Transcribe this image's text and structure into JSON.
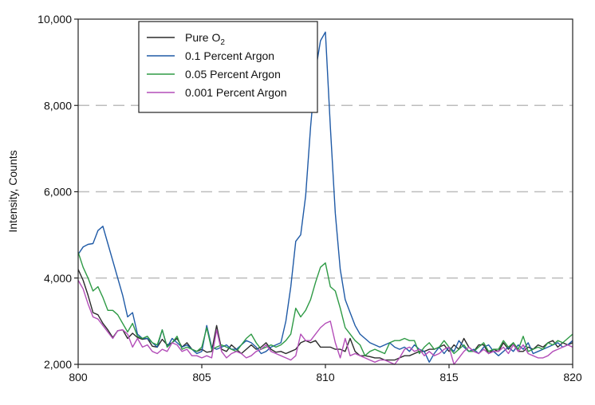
{
  "chart_data": {
    "type": "line",
    "title": "",
    "xlabel": "",
    "ylabel": "Intensity, Counts",
    "xlim": [
      800,
      820
    ],
    "ylim": [
      2000,
      10000
    ],
    "x_ticks": [
      800,
      805,
      810,
      815,
      820
    ],
    "x_tick_labels": [
      "800",
      "805",
      "810",
      "815",
      "820"
    ],
    "y_ticks": [
      2000,
      4000,
      6000,
      8000,
      10000
    ],
    "y_tick_labels": [
      "2,000",
      "4,000",
      "6,000",
      "8,000",
      "10,000"
    ],
    "grid": "horizontal dashed",
    "legend_position": "top-left",
    "x": [
      800.0,
      800.2,
      800.4,
      800.6,
      800.8,
      801.0,
      801.2,
      801.4,
      801.6,
      801.8,
      802.0,
      802.2,
      802.4,
      802.6,
      802.8,
      803.0,
      803.2,
      803.4,
      803.6,
      803.8,
      804.0,
      804.2,
      804.4,
      804.6,
      804.8,
      805.0,
      805.2,
      805.4,
      805.6,
      805.8,
      806.0,
      806.2,
      806.4,
      806.6,
      806.8,
      807.0,
      807.2,
      807.4,
      807.6,
      807.8,
      808.0,
      808.2,
      808.4,
      808.6,
      808.8,
      809.0,
      809.2,
      809.4,
      809.6,
      809.8,
      810.0,
      810.2,
      810.4,
      810.6,
      810.8,
      811.0,
      811.2,
      811.4,
      811.6,
      811.8,
      812.0,
      812.2,
      812.4,
      812.6,
      812.8,
      813.0,
      813.2,
      813.4,
      813.6,
      813.8,
      814.0,
      814.2,
      814.4,
      814.6,
      814.8,
      815.0,
      815.2,
      815.4,
      815.6,
      815.8,
      816.0,
      816.2,
      816.4,
      816.6,
      816.8,
      817.0,
      817.2,
      817.4,
      817.6,
      817.8,
      818.0,
      818.2,
      818.4,
      818.6,
      818.8,
      819.0,
      819.2,
      819.4,
      819.6,
      819.8,
      820.0
    ],
    "series": [
      {
        "name": "Pure O₂",
        "label_main": "Pure O",
        "label_sub": "2",
        "color": "#2b2b2b",
        "values": [
          4200,
          3950,
          3600,
          3200,
          3150,
          2950,
          2800,
          2620,
          2780,
          2800,
          2600,
          2720,
          2620,
          2580,
          2600,
          2420,
          2400,
          2580,
          2450,
          2500,
          2600,
          2400,
          2500,
          2350,
          2300,
          2350,
          2280,
          2300,
          2900,
          2350,
          2300,
          2450,
          2350,
          2250,
          2350,
          2450,
          2350,
          2400,
          2500,
          2350,
          2280,
          2300,
          2250,
          2300,
          2350,
          2500,
          2550,
          2500,
          2550,
          2400,
          2400,
          2400,
          2350,
          2350,
          2300,
          2600,
          2300,
          2200,
          2200,
          2180,
          2150,
          2150,
          2100,
          2100,
          2100,
          2150,
          2200,
          2200,
          2250,
          2300,
          2300,
          2350,
          2350,
          2400,
          2450,
          2300,
          2450,
          2350,
          2600,
          2400,
          2300,
          2450,
          2450,
          2250,
          2350,
          2300,
          2500,
          2350,
          2500,
          2300,
          2300,
          2400,
          2350,
          2450,
          2400,
          2500,
          2550,
          2400,
          2500,
          2450,
          2500
        ]
      },
      {
        "name": "0.1 Percent Argon",
        "label_main": "0.1 Percent Argon",
        "label_sub": "",
        "color": "#1f5aa6",
        "values": [
          4550,
          4720,
          4780,
          4800,
          5100,
          5200,
          4800,
          4400,
          4000,
          3600,
          3100,
          3200,
          2700,
          2600,
          2600,
          2500,
          2400,
          2800,
          2400,
          2600,
          2500,
          2400,
          2450,
          2350,
          2250,
          2300,
          2900,
          2400,
          2350,
          2400,
          2450,
          2350,
          2350,
          2450,
          2550,
          2500,
          2400,
          2250,
          2300,
          2400,
          2450,
          2500,
          3000,
          3800,
          4850,
          5000,
          5900,
          7500,
          8800,
          9500,
          9700,
          7500,
          5500,
          4200,
          3500,
          3200,
          2900,
          2700,
          2600,
          2500,
          2450,
          2400,
          2450,
          2500,
          2400,
          2350,
          2400,
          2300,
          2450,
          2350,
          2300,
          2050,
          2250,
          2400,
          2250,
          2400,
          2300,
          2550,
          2400,
          2300,
          2350,
          2250,
          2400,
          2450,
          2300,
          2200,
          2300,
          2400,
          2300,
          2450,
          2350,
          2500,
          2250,
          2300,
          2350,
          2400,
          2450,
          2500,
          2400,
          2450,
          2550
        ]
      },
      {
        "name": "0.05 Percent Argon",
        "label_main": "0.05 Percent Argon",
        "label_sub": "",
        "color": "#2e9a45",
        "values": [
          4600,
          4250,
          4000,
          3700,
          3800,
          3550,
          3250,
          3250,
          3150,
          2950,
          2750,
          2950,
          2650,
          2600,
          2650,
          2500,
          2450,
          2800,
          2400,
          2500,
          2650,
          2350,
          2400,
          2350,
          2300,
          2400,
          2850,
          2350,
          2400,
          2450,
          2400,
          2350,
          2300,
          2450,
          2600,
          2700,
          2500,
          2350,
          2400,
          2450,
          2400,
          2450,
          2550,
          2700,
          3300,
          3100,
          3250,
          3500,
          3900,
          4250,
          4350,
          3800,
          3700,
          3300,
          2850,
          2700,
          2550,
          2450,
          2200,
          2300,
          2350,
          2300,
          2250,
          2500,
          2550,
          2550,
          2600,
          2550,
          2550,
          2250,
          2400,
          2500,
          2350,
          2400,
          2550,
          2400,
          2250,
          2350,
          2450,
          2300,
          2300,
          2400,
          2500,
          2300,
          2350,
          2350,
          2550,
          2400,
          2500,
          2350,
          2650,
          2300,
          2350,
          2400,
          2350,
          2500,
          2450,
          2550,
          2500,
          2600,
          2700
        ]
      },
      {
        "name": "0.001 Percent Argon",
        "label_main": "0.001 Percent Argon",
        "label_sub": "",
        "color": "#b34db8",
        "values": [
          3950,
          3750,
          3400,
          3100,
          3050,
          2900,
          2750,
          2600,
          2780,
          2800,
          2700,
          2400,
          2600,
          2400,
          2450,
          2300,
          2250,
          2350,
          2300,
          2500,
          2450,
          2300,
          2350,
          2200,
          2200,
          2150,
          2200,
          2150,
          2800,
          2300,
          2150,
          2250,
          2300,
          2250,
          2150,
          2200,
          2300,
          2350,
          2450,
          2300,
          2250,
          2200,
          2150,
          2100,
          2200,
          2700,
          2550,
          2550,
          2700,
          2850,
          2950,
          3000,
          2500,
          2150,
          2600,
          2200,
          2250,
          2200,
          2150,
          2100,
          2050,
          2100,
          2100,
          2050,
          2000,
          2150,
          2350,
          2400,
          2300,
          2350,
          2200,
          2300,
          2200,
          2250,
          2350,
          2400,
          2000,
          2150,
          2300,
          2400,
          2300,
          2250,
          2350,
          2250,
          2300,
          2300,
          2400,
          2250,
          2450,
          2300,
          2450,
          2250,
          2200,
          2150,
          2150,
          2200,
          2300,
          2350,
          2400,
          2450,
          2400
        ]
      }
    ]
  }
}
